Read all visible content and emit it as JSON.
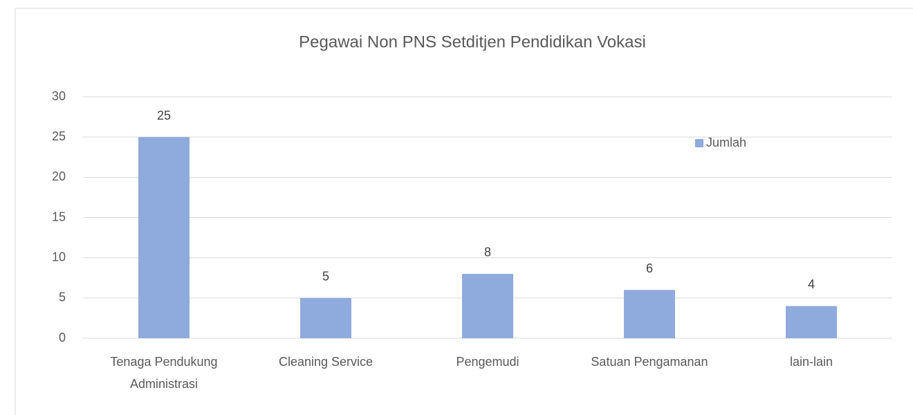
{
  "chart_data": {
    "type": "bar",
    "title": "Pegawai Non PNS Setditjen Pendidikan Vokasi",
    "categories": [
      "Tenaga Pendukung Administrasi",
      "Cleaning Service",
      "Pengemudi",
      "Satuan Pengamanan",
      "lain-lain"
    ],
    "series": [
      {
        "name": "Jumlah",
        "color": "#8faadc",
        "values": [
          25,
          5,
          8,
          6,
          4
        ]
      }
    ],
    "ylim": [
      0,
      30
    ],
    "yticks": [
      0,
      5,
      10,
      15,
      20,
      25,
      30
    ],
    "grid": true,
    "legend": "top-right"
  }
}
